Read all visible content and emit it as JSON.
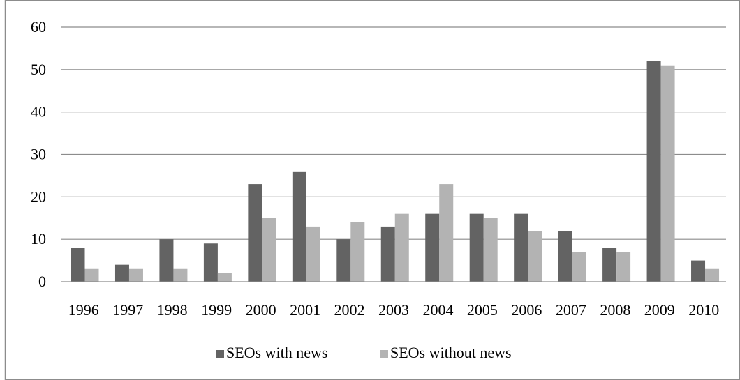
{
  "chart_data": {
    "type": "bar",
    "title": "",
    "xlabel": "",
    "ylabel": "",
    "categories": [
      "1996",
      "1997",
      "1998",
      "1999",
      "2000",
      "2001",
      "2002",
      "2003",
      "2004",
      "2005",
      "2006",
      "2007",
      "2008",
      "2009",
      "2010"
    ],
    "series": [
      {
        "name": "SEOs with news",
        "color": "#636363",
        "values": [
          8,
          4,
          10,
          9,
          23,
          26,
          10,
          13,
          16,
          16,
          16,
          12,
          8,
          52,
          5
        ]
      },
      {
        "name": "SEOs without news",
        "color": "#b3b3b3",
        "values": [
          3,
          3,
          3,
          2,
          15,
          13,
          14,
          16,
          23,
          15,
          12,
          7,
          7,
          51,
          3
        ]
      }
    ],
    "ylim": [
      0,
      60
    ],
    "yticks": [
      "0",
      "10",
      "20",
      "30",
      "40",
      "50",
      "60"
    ],
    "grid": true,
    "legend_position": "bottom"
  }
}
